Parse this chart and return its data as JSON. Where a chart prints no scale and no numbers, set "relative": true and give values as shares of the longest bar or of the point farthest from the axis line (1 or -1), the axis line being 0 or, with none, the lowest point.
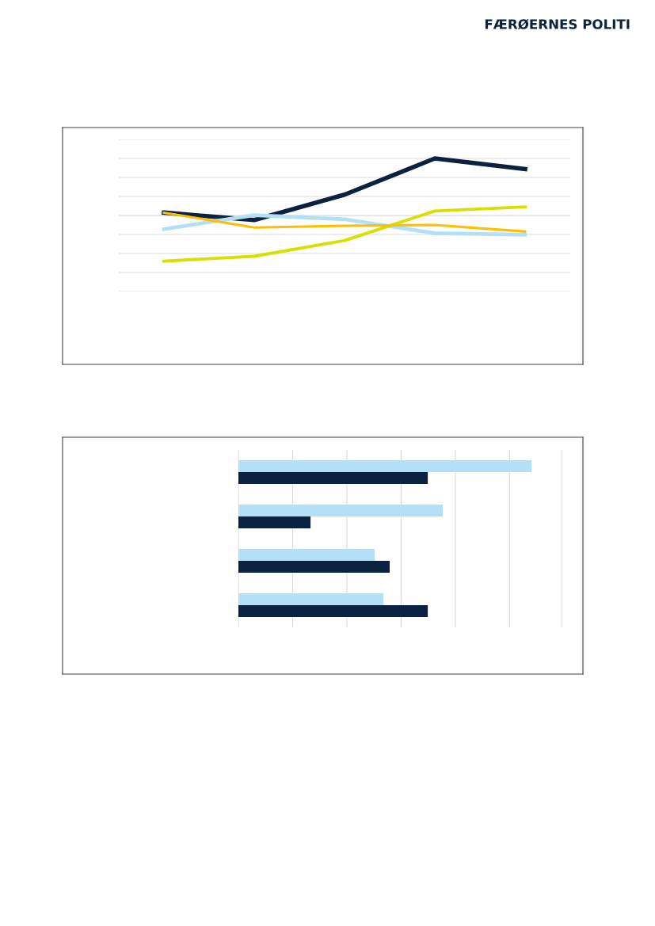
{
  "chart_data": [
    {
      "type": "line",
      "relative": true,
      "categories": [
        null,
        null,
        null,
        null,
        null
      ],
      "grid": "y",
      "legend": false,
      "annotations": [
        "FÆRØERNES POLITI"
      ],
      "series": [
        {
          "color": "#0a2240",
          "values": [
            0.593,
            0.537,
            0.728,
            1,
            0.92
          ]
        },
        {
          "color": "#b3e0f7",
          "values": [
            0.469,
            0.574,
            0.543,
            0.438,
            0.426
          ]
        },
        {
          "color": "#d8e000",
          "values": [
            0.228,
            0.265,
            0.383,
            0.605,
            0.636
          ]
        },
        {
          "color": "#ffbe00",
          "values": [
            0.593,
            0.481,
            0.494,
            0.5,
            0.451
          ]
        }
      ]
    },
    {
      "type": "bar",
      "orientation": "horizontal",
      "relative": true,
      "categories": [
        null,
        null,
        null,
        null
      ],
      "grid": "x",
      "legend": false,
      "series": [
        {
          "color": "#b3e0f7",
          "values": [
            1,
            0.697,
            0.465,
            0.495
          ]
        },
        {
          "color": "#0a2240",
          "values": [
            0.646,
            0.246,
            0.516,
            0.646
          ]
        }
      ]
    }
  ]
}
